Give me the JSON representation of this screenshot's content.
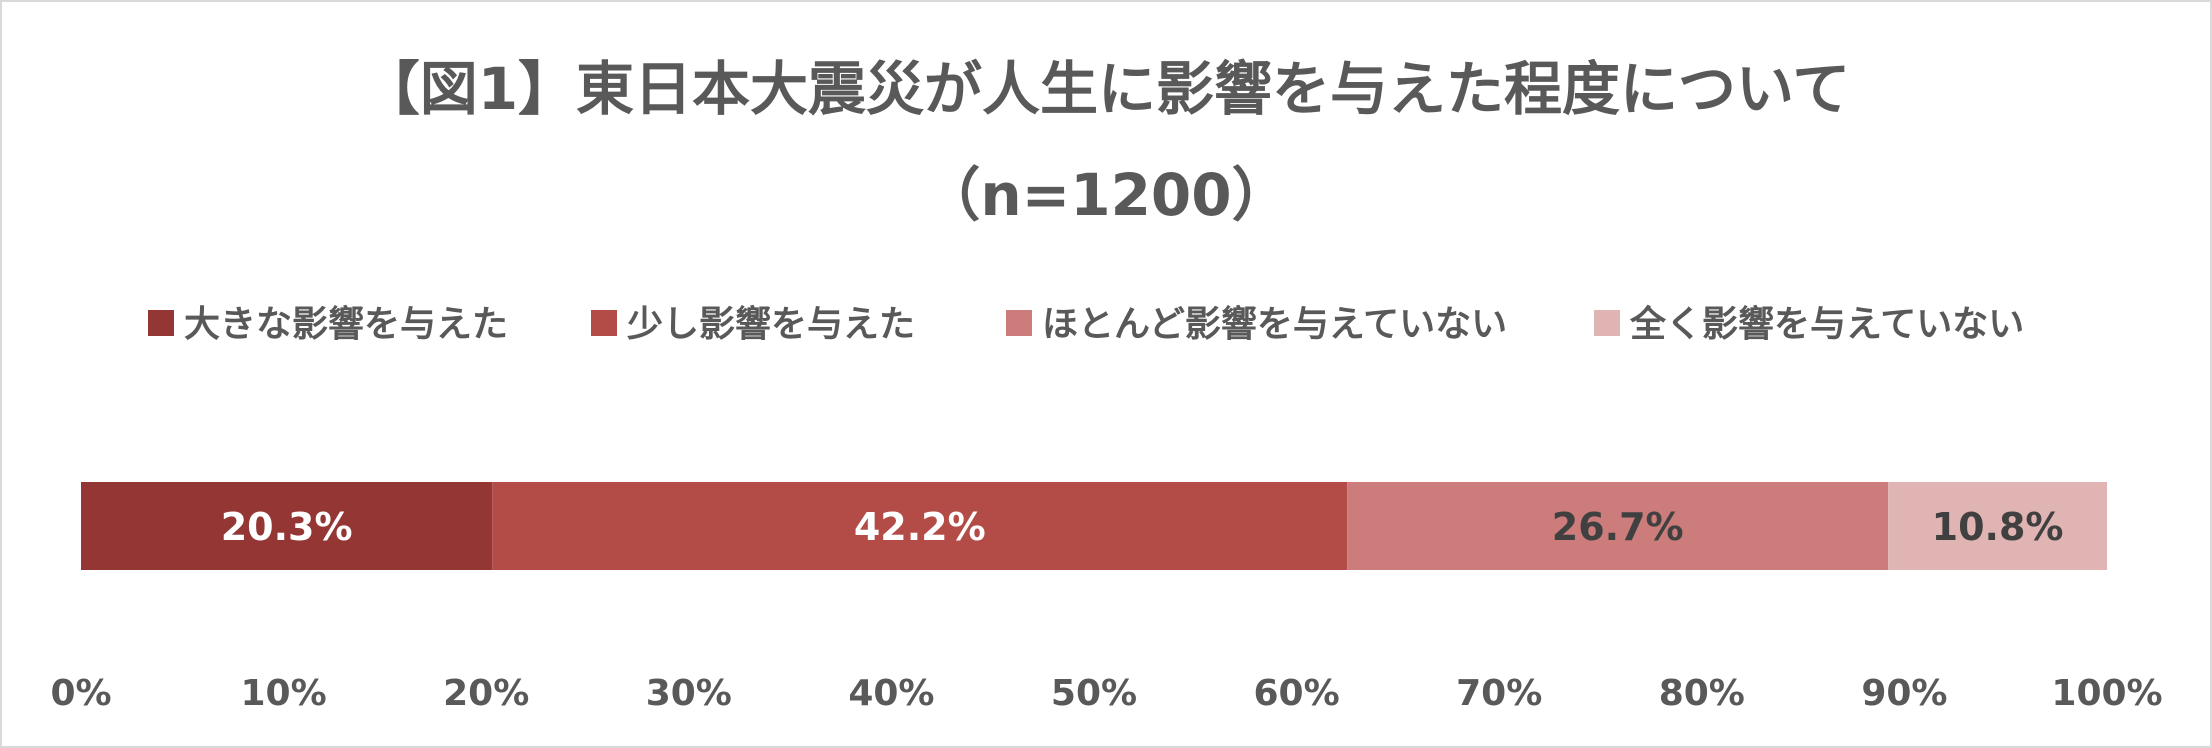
{
  "chart_data": {
    "type": "bar",
    "orientation": "horizontal-stacked",
    "title": "【図1】東日本大震災が人生に影響を与えた程度について",
    "subtitle": "（n=1200）",
    "xlim": [
      0,
      100
    ],
    "grid": false,
    "legend_position": "top",
    "ticks": [
      "0%",
      "10%",
      "20%",
      "30%",
      "40%",
      "50%",
      "60%",
      "70%",
      "80%",
      "90%",
      "100%"
    ],
    "series": [
      {
        "name": "大きな影響を与えた",
        "value": 20.3,
        "label": "20.3%",
        "color": "#943634",
        "label_color": "#ffffff"
      },
      {
        "name": "少し影響を与えた",
        "value": 42.2,
        "label": "42.2%",
        "color": "#b34b47",
        "label_color": "#ffffff"
      },
      {
        "name": "ほとんど影響を与えていない",
        "value": 26.7,
        "label": "26.7%",
        "color": "#cb7c7b",
        "label_color": "#404040"
      },
      {
        "name": "全く影響を与えていない",
        "value": 10.8,
        "label": "10.8%",
        "color": "#e1b4b4",
        "label_color": "#404040"
      }
    ]
  }
}
